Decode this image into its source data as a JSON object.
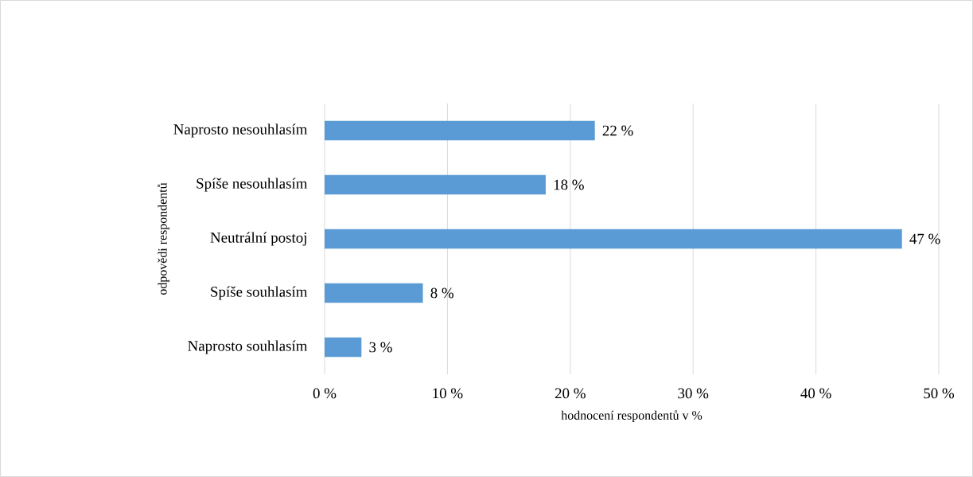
{
  "chart_data": {
    "type": "bar",
    "orientation": "horizontal",
    "categories": [
      "Naprosto nesouhlasím",
      "Spíše nesouhlasím",
      "Neutrální postoj",
      "Spíše souhlasím",
      "Naprosto souhlasím"
    ],
    "values": [
      22,
      18,
      47,
      8,
      3
    ],
    "value_labels": [
      "22 %",
      "18 %",
      "47 %",
      "8 %",
      "3 %"
    ],
    "color": "#5b9bd5",
    "xlabel": "hodnocení respondentů v %",
    "ylabel": "odpovědi respondentů",
    "xlim": [
      0,
      50
    ],
    "xticks": [
      {
        "value": 0,
        "label": "0 %"
      },
      {
        "value": 10,
        "label": "10 %"
      },
      {
        "value": 20,
        "label": "20 %"
      },
      {
        "value": 30,
        "label": "30 %"
      },
      {
        "value": 40,
        "label": "40 %"
      },
      {
        "value": 50,
        "label": "50 %"
      }
    ],
    "grid": "x"
  }
}
